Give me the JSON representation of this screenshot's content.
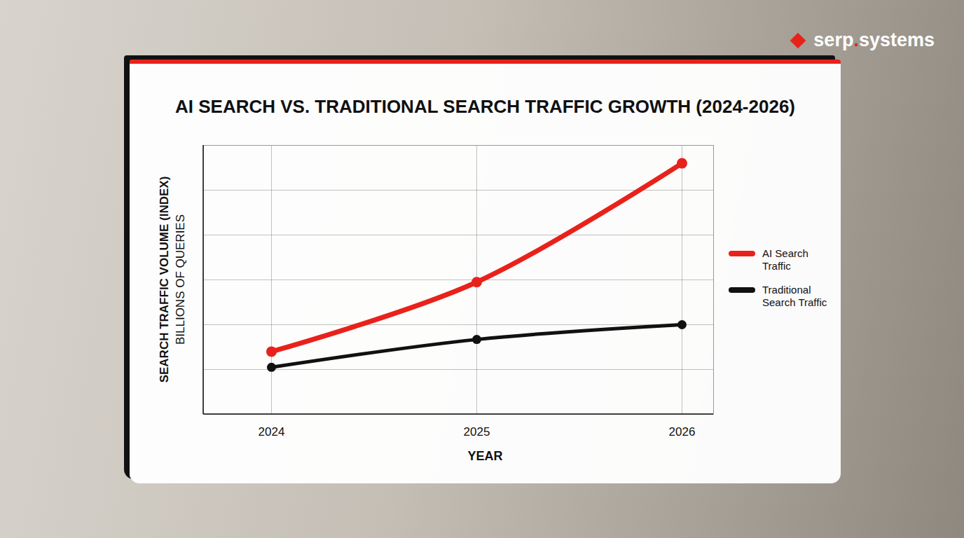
{
  "chart_data": {
    "type": "line",
    "title": "AI SEARCH VS. TRADITIONAL SEARCH TRAFFIC GROWTH (2024-2026)",
    "brand": "serp.systems",
    "xlabel": "YEAR",
    "ylabel": [
      "SEARCH TRAFFIC VOLUME (INDEX)",
      "BILLIONS OF QUERIES"
    ],
    "categories": [
      "2024",
      "2025",
      "2026"
    ],
    "series": [
      {
        "name": "AI Search Traffic",
        "color": "#e8221b",
        "values": [
          1.4,
          2.95,
          5.6
        ],
        "marker": "circle",
        "line_style": "solid"
      },
      {
        "name": "Traditional Search Traffic",
        "color": "#111111",
        "values": [
          1.05,
          1.67,
          2.0
        ],
        "marker": "circle",
        "line_style": "solid"
      }
    ],
    "ylim": [
      0,
      6
    ],
    "yticks": [
      0,
      1,
      2,
      3,
      4,
      5,
      6
    ],
    "grid": true,
    "legend": "right",
    "tick_labels": "x"
  }
}
